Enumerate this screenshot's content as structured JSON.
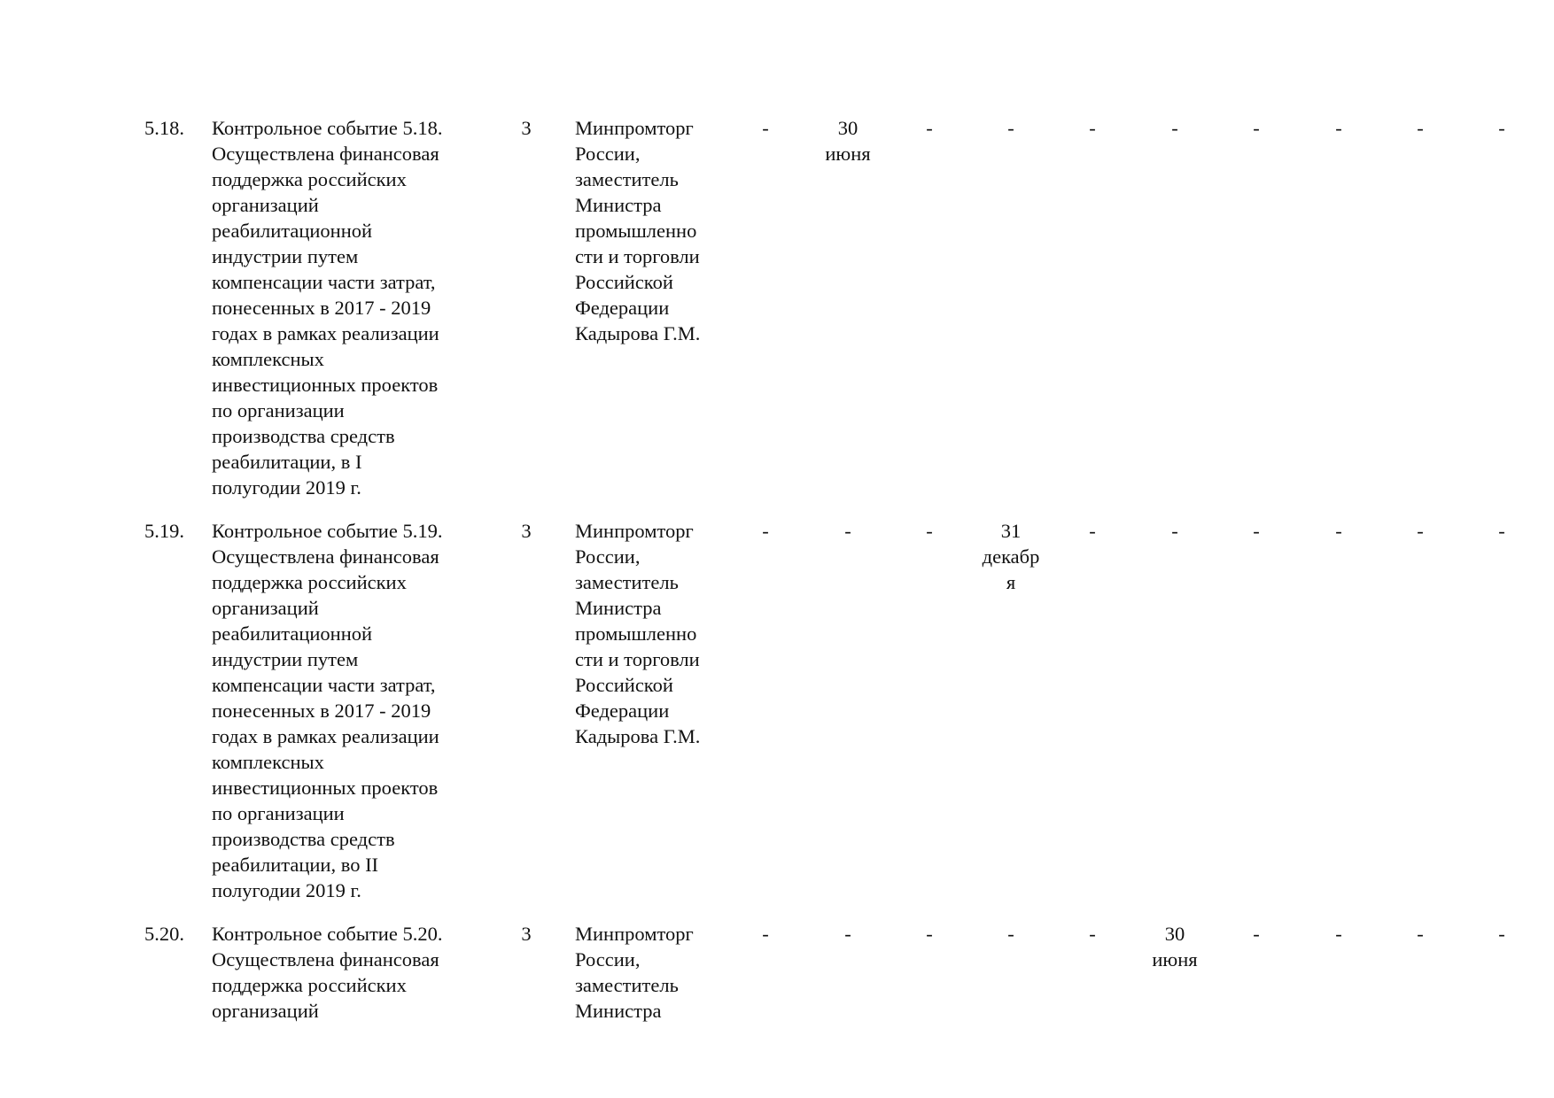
{
  "rows": [
    {
      "number": "5.18.",
      "description": "Контрольное событие 5.18.\nОсуществлена финансовая\nподдержка российских\nорганизаций\nреабилитационной\nиндустрии путем\nкомпенсации части затрат,\nпонесенных в 2017 - 2019\nгодах в рамках реализации\nкомплексных\nинвестиционных проектов\nпо организации\nпроизводства средств\nреабилитации, в I\nполугодии 2019 г.",
      "level": "3",
      "responsible": "Минпромторг\nРоссии,\nзаместитель\nМинистра\nпромышленно\nсти и торговли\nРоссийской\nФедерации\nКадырова Г.М.",
      "schedule": [
        "-",
        "30\nиюня",
        "-",
        "-",
        "-",
        "-",
        "-",
        "-",
        "-",
        "-"
      ]
    },
    {
      "number": "5.19.",
      "description": "Контрольное событие 5.19.\nОсуществлена финансовая\nподдержка российских\nорганизаций\nреабилитационной\nиндустрии путем\nкомпенсации части затрат,\nпонесенных в 2017 - 2019\nгодах в рамках реализации\nкомплексных\nинвестиционных проектов\nпо организации\nпроизводства средств\nреабилитации, во II\nполугодии 2019 г.",
      "level": "3",
      "responsible": "Минпромторг\nРоссии,\nзаместитель\nМинистра\nпромышленно\nсти и торговли\nРоссийской\nФедерации\nКадырова Г.М.",
      "schedule": [
        "-",
        "-",
        "-",
        "31\nдекабр\nя",
        "-",
        "-",
        "-",
        "-",
        "-",
        "-"
      ]
    },
    {
      "number": "5.20.",
      "description": "Контрольное событие 5.20.\nОсуществлена финансовая\nподдержка российских\nорганизаций",
      "level": "3",
      "responsible": "Минпромторг\nРоссии,\nзаместитель\nМинистра",
      "schedule": [
        "-",
        "-",
        "-",
        "-",
        "-",
        "30\nиюня",
        "-",
        "-",
        "-",
        "-"
      ]
    }
  ]
}
